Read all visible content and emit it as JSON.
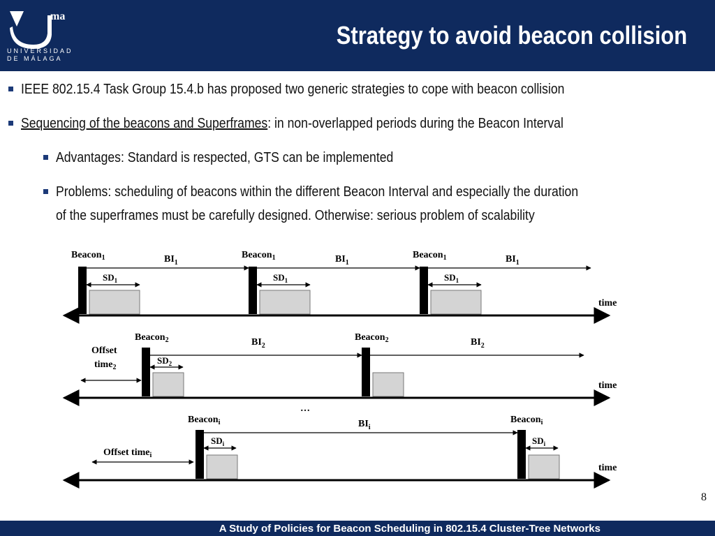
{
  "header": {
    "title": "Strategy to avoid beacon collision",
    "logo_mark": "ma",
    "logo_line1": "UNIVERSIDAD",
    "logo_line2": "DE MÁLAGA"
  },
  "bullets": [
    {
      "level": 1,
      "text": "IEEE 802.15.4 Task Group 15.4.b has proposed two generic strategies to cope with beacon collision"
    },
    {
      "level": 1,
      "underlined": "Sequencing of the beacons and Superframes",
      "text": ": in non-overlapped periods during the Beacon Interval"
    },
    {
      "level": 2,
      "text": "Advantages: Standard is respected, GTS can be implemented"
    },
    {
      "level": 2,
      "text": "Problems: scheduling of beacons within the different Beacon Interval and especially the duration",
      "cont": "of the superframes must be carefully designed. Otherwise: serious problem of scalability"
    }
  ],
  "diagram": {
    "row1": {
      "beacon": "Beacon",
      "sub": "1",
      "bi": "BI",
      "sd": "SD",
      "time": "time"
    },
    "row2": {
      "beacon": "Beacon",
      "sub": "2",
      "bi": "BI",
      "sd": "SD",
      "offset": "Offset",
      "offset2": "time",
      "time": "time"
    },
    "ellipsis": "…",
    "row3": {
      "beacon": "Beacon",
      "sub": "i",
      "bi": "BI",
      "sd": "SD",
      "offset": "Offset time",
      "time": "time"
    }
  },
  "footer": {
    "text": "A Study of Policies for Beacon Scheduling in 802.15.4 Cluster-Tree Networks"
  },
  "page_number": "8"
}
